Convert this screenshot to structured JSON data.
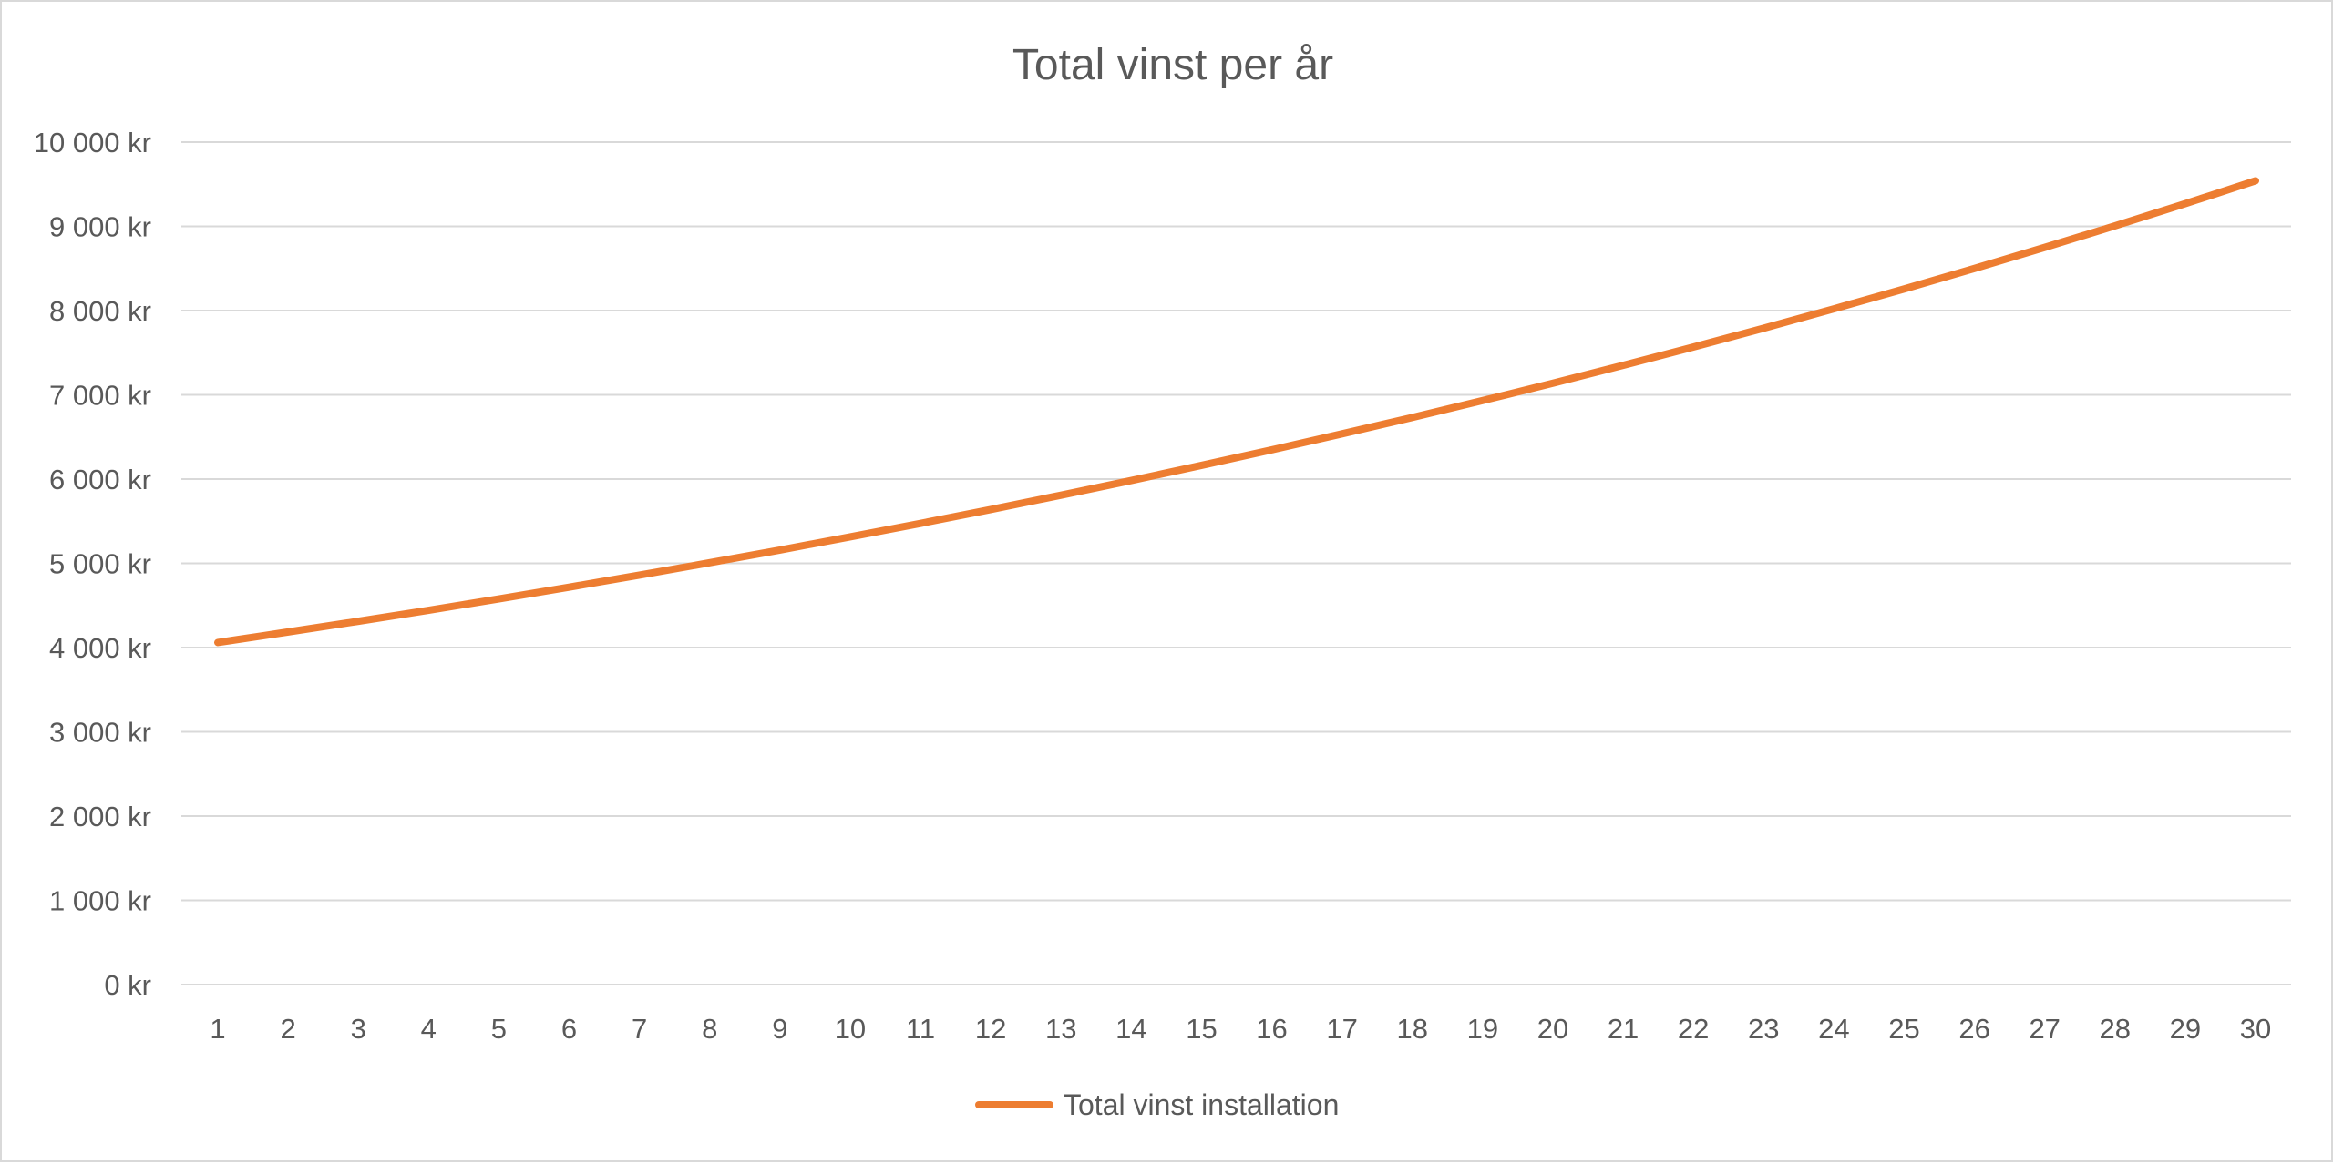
{
  "chart_data": {
    "type": "line",
    "title": "Total vinst per år",
    "xlabel": "",
    "ylabel": "",
    "x": [
      1,
      2,
      3,
      4,
      5,
      6,
      7,
      8,
      9,
      10,
      11,
      12,
      13,
      14,
      15,
      16,
      17,
      18,
      19,
      20,
      21,
      22,
      23,
      24,
      25,
      26,
      27,
      28,
      29,
      30
    ],
    "series": [
      {
        "name": "Total vinst  installation",
        "color": "#ED7D31",
        "values": [
          4060,
          4185,
          4312,
          4443,
          4578,
          4717,
          4860,
          5007,
          5158,
          5314,
          5474,
          5639,
          5809,
          5983,
          6163,
          6347,
          6537,
          6731,
          6932,
          7138,
          7350,
          7567,
          7791,
          8021,
          8257,
          8500,
          8750,
          9006,
          9270,
          9541
        ]
      }
    ],
    "ylim": [
      0,
      10000
    ],
    "y_ticks": [
      "0 kr",
      "1 000 kr",
      "2 000 kr",
      "3 000 kr",
      "4 000 kr",
      "5 000 kr",
      "6 000 kr",
      "7 000 kr",
      "8 000 kr",
      "9 000 kr",
      "10 000 kr"
    ],
    "x_ticks": [
      "1",
      "2",
      "3",
      "4",
      "5",
      "6",
      "7",
      "8",
      "9",
      "10",
      "11",
      "12",
      "13",
      "14",
      "15",
      "16",
      "17",
      "18",
      "19",
      "20",
      "21",
      "22",
      "23",
      "24",
      "25",
      "26",
      "27",
      "28",
      "29",
      "30"
    ],
    "grid": true,
    "legend_position": "bottom"
  }
}
